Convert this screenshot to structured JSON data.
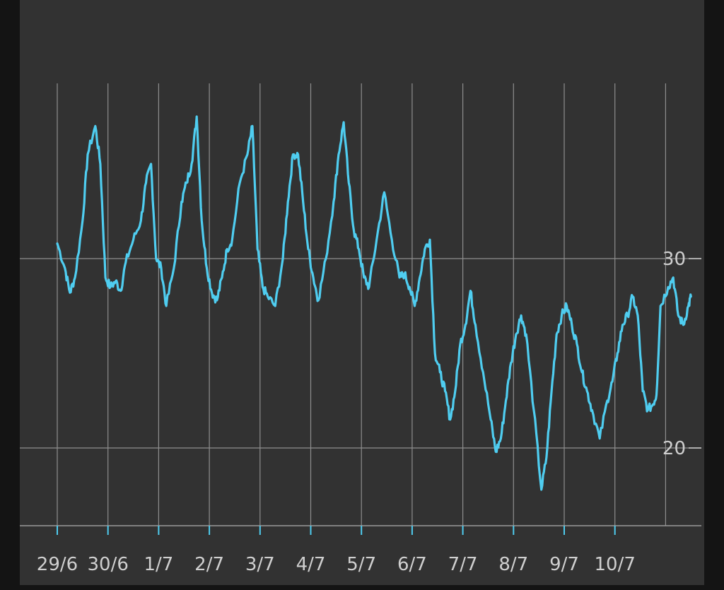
{
  "chart_data": {
    "type": "line",
    "title": "",
    "xlabel": "",
    "ylabel": "",
    "x_tick_labels": [
      "29/6",
      "30/6",
      "1/7",
      "2/7",
      "3/7",
      "4/7",
      "5/7",
      "6/7",
      "7/7",
      "8/7",
      "9/7",
      "10/7"
    ],
    "y_tick_labels": [
      "30",
      "20"
    ],
    "y_ticks": [
      30,
      20
    ],
    "ylim": [
      15.9,
      39.2
    ],
    "xlim": [
      -0.1,
      12.85
    ],
    "grid": true,
    "series": [
      {
        "color": "#4fcdf0",
        "x": [
          0.0,
          0.15,
          0.25,
          0.35,
          0.5,
          0.6,
          0.75,
          0.85,
          0.95,
          1.05,
          1.15,
          1.25,
          1.35,
          1.5,
          1.65,
          1.75,
          1.85,
          1.95,
          2.05,
          2.15,
          2.3,
          2.45,
          2.55,
          2.65,
          2.75,
          2.85,
          2.95,
          3.05,
          3.15,
          3.25,
          3.35,
          3.45,
          3.6,
          3.75,
          3.85,
          3.95,
          4.05,
          4.15,
          4.3,
          4.45,
          4.55,
          4.65,
          4.75,
          4.85,
          4.95,
          5.05,
          5.15,
          5.3,
          5.45,
          5.55,
          5.65,
          5.75,
          5.85,
          5.95,
          6.05,
          6.15,
          6.3,
          6.45,
          6.6,
          6.75,
          6.85,
          6.95,
          7.05,
          7.15,
          7.25,
          7.35,
          7.45,
          7.55,
          7.65,
          7.75,
          7.85,
          7.95,
          8.05,
          8.15,
          8.25,
          8.4,
          8.55,
          8.65,
          8.75,
          8.85,
          8.95,
          9.05,
          9.15,
          9.25,
          9.4,
          9.55,
          9.65,
          9.75,
          9.85,
          9.95,
          10.05,
          10.15,
          10.25,
          10.35,
          10.45,
          10.55,
          10.7,
          10.85,
          10.95,
          11.05,
          11.15,
          11.25,
          11.35,
          11.45,
          11.55,
          11.65,
          11.75,
          11.82,
          11.9,
          12.05,
          12.15,
          12.25,
          12.35,
          12.45,
          12.5
        ],
        "y": [
          30.8,
          29.5,
          28.2,
          29.0,
          32.0,
          35.5,
          37.0,
          35.0,
          29.0,
          28.5,
          28.8,
          28.3,
          29.8,
          31.0,
          32.0,
          34.0,
          35.0,
          30.0,
          29.5,
          27.5,
          29.5,
          33.0,
          34.0,
          35.0,
          37.5,
          32.0,
          29.5,
          28.2,
          27.8,
          29.0,
          30.5,
          31.0,
          34.0,
          35.5,
          37.0,
          30.5,
          28.5,
          28.0,
          27.5,
          30.0,
          33.0,
          35.5,
          35.5,
          33.0,
          30.5,
          29.0,
          27.8,
          30.0,
          33.0,
          35.5,
          37.2,
          34.0,
          31.5,
          30.5,
          29.0,
          28.5,
          31.0,
          33.5,
          31.0,
          29.0,
          29.2,
          28.5,
          27.5,
          29.0,
          30.5,
          31.0,
          25.0,
          24.0,
          23.0,
          21.5,
          23.0,
          25.5,
          26.5,
          28.3,
          26.5,
          24.0,
          21.5,
          19.8,
          20.5,
          22.5,
          24.5,
          26.0,
          27.0,
          26.0,
          22.0,
          17.8,
          19.5,
          23.0,
          26.0,
          27.0,
          27.5,
          26.5,
          25.5,
          24.0,
          23.0,
          22.0,
          20.5,
          22.5,
          23.5,
          25.0,
          26.5,
          27.0,
          28.0,
          27.0,
          23.0,
          22.0,
          22.3,
          22.8,
          27.5,
          28.5,
          29.0,
          27.0,
          26.5,
          27.5,
          28.0
        ]
      }
    ]
  }
}
